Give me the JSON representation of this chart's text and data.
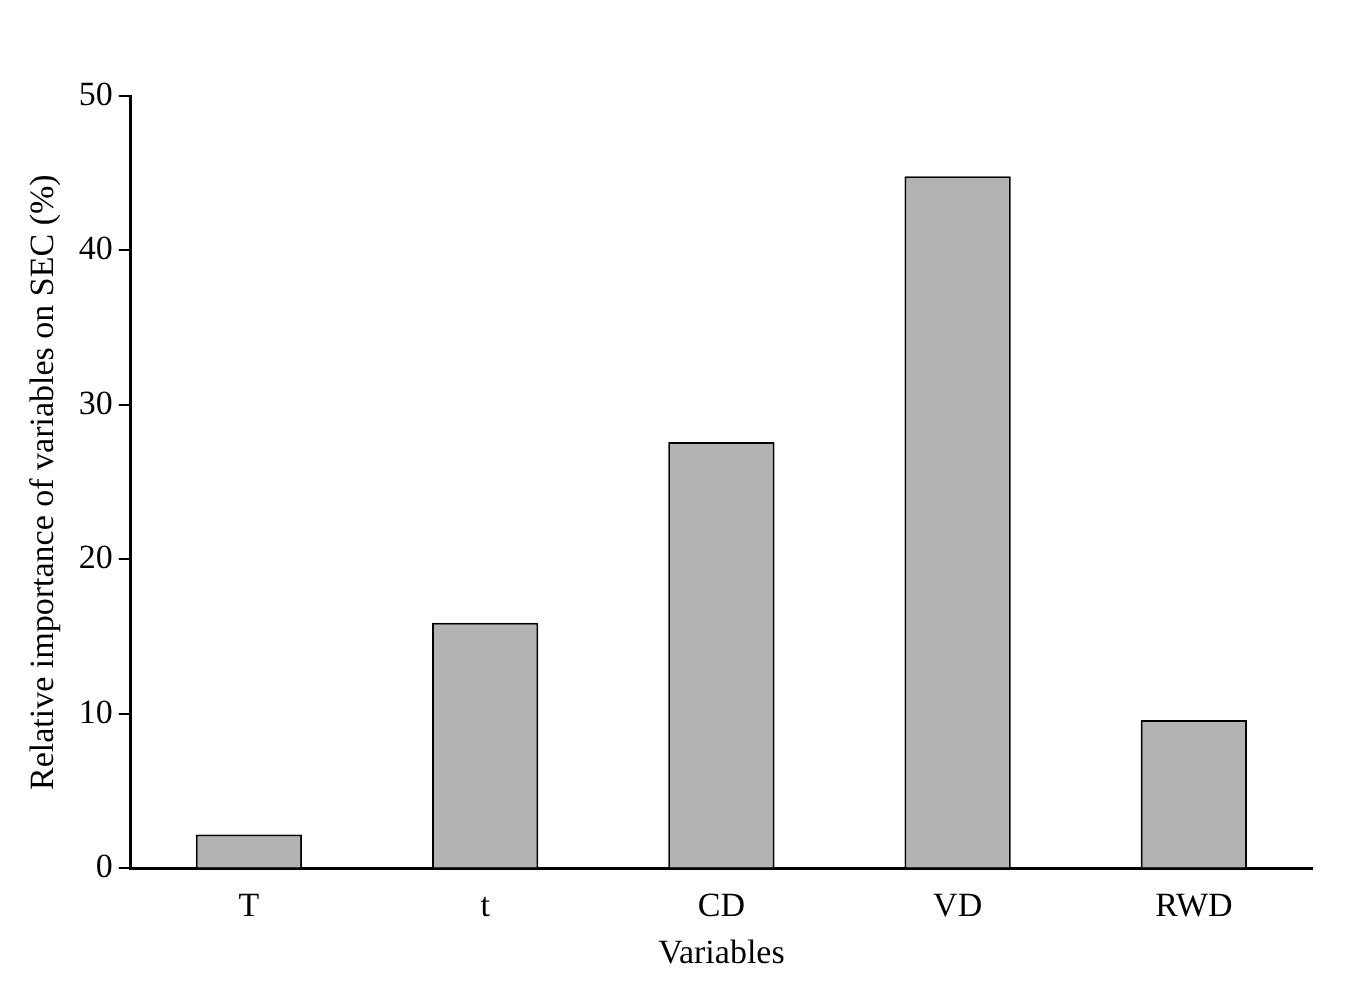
{
  "chart_data": {
    "type": "bar",
    "xlabel": "Variables",
    "ylabel": "Relative importance of variables on SEC (%)",
    "categories": [
      "T",
      "t",
      "CD",
      "VD",
      "RWD"
    ],
    "values": [
      2.2,
      15.9,
      27.6,
      44.8,
      9.6
    ],
    "color": "#b3b3b3",
    "ylim": [
      0,
      50
    ],
    "yticks": [
      0,
      10,
      20,
      30,
      40,
      50
    ],
    "grid": false,
    "legend": false
  }
}
